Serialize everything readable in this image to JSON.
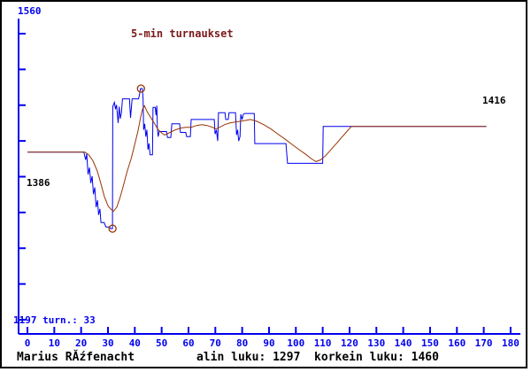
{
  "window": {
    "background": "#ffffff",
    "border_color": "#000000"
  },
  "header": {
    "title": "5-min turnaukset"
  },
  "labels": {
    "y_axis_top": "1560",
    "y_axis_bottom_info": "1197 turn.: 33",
    "series_start_value": "1386",
    "series_end_value": "1416"
  },
  "footer": {
    "player_name": "Marius RĂźfenacht",
    "stats": "alin luku: 1297  korkein luku: 1460"
  },
  "colors": {
    "axis_and_rating_blue": "#0000ee",
    "average_line_brown": "#993300",
    "title_maroon": "#7a1a1a",
    "text_black": "#000000"
  },
  "chart_data": {
    "type": "line",
    "title": "5-min turnaukset",
    "xlabel": "",
    "ylabel": "",
    "grid": false,
    "legend": "none",
    "x_axis": {
      "min": 0,
      "max": 180,
      "tick_step": 10,
      "ticks": [
        0,
        10,
        20,
        30,
        40,
        50,
        60,
        70,
        80,
        90,
        100,
        110,
        120,
        130,
        140,
        150,
        160,
        170,
        180
      ]
    },
    "y_axis": {
      "top_label_value": 1560,
      "bottom_label_value": 1197,
      "minor_tick_count": 9
    },
    "stats": {
      "lowest": 1297,
      "highest": 1460,
      "start": 1386,
      "current": 1416,
      "tournaments": 33
    },
    "series": [
      {
        "name": "rating",
        "color_key": "axis_and_rating_blue",
        "points": [
          [
            0,
            1386
          ],
          [
            21,
            1386
          ],
          [
            21.7,
            1377
          ],
          [
            22.1,
            1384
          ],
          [
            22.6,
            1360
          ],
          [
            23.1,
            1368
          ],
          [
            23.6,
            1350
          ],
          [
            24.1,
            1358
          ],
          [
            24.6,
            1337
          ],
          [
            25.1,
            1345
          ],
          [
            25.6,
            1322
          ],
          [
            26.1,
            1330
          ],
          [
            26.5,
            1313
          ],
          [
            27,
            1320
          ],
          [
            27.4,
            1304
          ],
          [
            28.6,
            1304
          ],
          [
            29.2,
            1299
          ],
          [
            30.6,
            1299
          ],
          [
            31,
            1297
          ],
          [
            31.7,
            1297
          ],
          [
            31.8,
            1439
          ],
          [
            32.4,
            1444
          ],
          [
            32.8,
            1436
          ],
          [
            33.2,
            1441
          ],
          [
            33.8,
            1420
          ],
          [
            34.2,
            1439
          ],
          [
            34.6,
            1425
          ],
          [
            35,
            1432
          ],
          [
            35.4,
            1448
          ],
          [
            38,
            1448
          ],
          [
            38.4,
            1426
          ],
          [
            39,
            1448
          ],
          [
            41.4,
            1448
          ],
          [
            41.8,
            1454
          ],
          [
            42.1,
            1460
          ],
          [
            42.8,
            1460
          ],
          [
            43.1,
            1448
          ],
          [
            43.3,
            1412
          ],
          [
            43.7,
            1419
          ],
          [
            44.1,
            1404
          ],
          [
            44.5,
            1412
          ],
          [
            44.9,
            1389
          ],
          [
            45.3,
            1396
          ],
          [
            45.7,
            1383
          ],
          [
            46.6,
            1383
          ],
          [
            46.8,
            1438
          ],
          [
            47.6,
            1438
          ],
          [
            47.9,
            1429
          ],
          [
            48.2,
            1440
          ],
          [
            48.4,
            1415
          ],
          [
            48.7,
            1404
          ],
          [
            49.1,
            1410
          ],
          [
            51.8,
            1410
          ],
          [
            52.2,
            1403
          ],
          [
            53.4,
            1403
          ],
          [
            53.8,
            1419
          ],
          [
            56.7,
            1419
          ],
          [
            57,
            1409
          ],
          [
            59,
            1409
          ],
          [
            59.3,
            1404
          ],
          [
            60.7,
            1404
          ],
          [
            61,
            1424
          ],
          [
            69.6,
            1424
          ],
          [
            69.9,
            1407
          ],
          [
            70.4,
            1412
          ],
          [
            70.9,
            1399
          ],
          [
            71.2,
            1432
          ],
          [
            73.6,
            1432
          ],
          [
            73.9,
            1424
          ],
          [
            74.8,
            1424
          ],
          [
            75.1,
            1432
          ],
          [
            77.5,
            1432
          ],
          [
            77.9,
            1406
          ],
          [
            78.3,
            1412
          ],
          [
            78.7,
            1399
          ],
          [
            79.2,
            1404
          ],
          [
            79.5,
            1430
          ],
          [
            80,
            1424
          ],
          [
            80.4,
            1430
          ],
          [
            81,
            1431
          ],
          [
            84.5,
            1431
          ],
          [
            84.7,
            1396
          ],
          [
            96.3,
            1396
          ],
          [
            96.9,
            1373
          ],
          [
            110,
            1373
          ],
          [
            110.2,
            1416
          ],
          [
            171,
            1416
          ]
        ]
      },
      {
        "name": "smoothed-average",
        "color_key": "average_line_brown",
        "points": [
          [
            0,
            1386
          ],
          [
            21.4,
            1386
          ],
          [
            22.8,
            1383
          ],
          [
            24.4,
            1376
          ],
          [
            26,
            1364
          ],
          [
            27.4,
            1349
          ],
          [
            28.7,
            1334
          ],
          [
            30.1,
            1323
          ],
          [
            31,
            1320
          ],
          [
            32,
            1317
          ],
          [
            33.3,
            1322
          ],
          [
            34.6,
            1334
          ],
          [
            35.9,
            1349
          ],
          [
            37.2,
            1364
          ],
          [
            38.6,
            1378
          ],
          [
            39.9,
            1394
          ],
          [
            41.2,
            1411
          ],
          [
            42.2,
            1427
          ],
          [
            42.9,
            1436
          ],
          [
            43.6,
            1440
          ],
          [
            44.6,
            1433
          ],
          [
            45.8,
            1427
          ],
          [
            47.2,
            1420
          ],
          [
            48.5,
            1413
          ],
          [
            50.1,
            1408
          ],
          [
            51.1,
            1406
          ],
          [
            53.1,
            1409
          ],
          [
            55.1,
            1412
          ],
          [
            57.1,
            1414
          ],
          [
            59,
            1415
          ],
          [
            61,
            1415
          ],
          [
            63,
            1417
          ],
          [
            65,
            1418
          ],
          [
            66.9,
            1417
          ],
          [
            68.9,
            1415
          ],
          [
            70.2,
            1413
          ],
          [
            71.6,
            1415
          ],
          [
            73.5,
            1418
          ],
          [
            75.5,
            1420
          ],
          [
            77.5,
            1421
          ],
          [
            79.4,
            1422
          ],
          [
            81.4,
            1423
          ],
          [
            83.1,
            1424
          ],
          [
            85.4,
            1422
          ],
          [
            88,
            1418
          ],
          [
            90.7,
            1413
          ],
          [
            93.3,
            1407
          ],
          [
            96,
            1401
          ],
          [
            98.6,
            1395
          ],
          [
            101.2,
            1389
          ],
          [
            103.9,
            1383
          ],
          [
            105.9,
            1378
          ],
          [
            107.5,
            1375
          ],
          [
            109.2,
            1377
          ],
          [
            111.1,
            1382
          ],
          [
            113.1,
            1389
          ],
          [
            115.1,
            1396
          ],
          [
            117,
            1403
          ],
          [
            119,
            1410
          ],
          [
            120.7,
            1416
          ],
          [
            171,
            1416
          ]
        ]
      }
    ],
    "markers": [
      {
        "label": "lowest-point",
        "x": 31.7,
        "value": 1297
      },
      {
        "label": "highest-point",
        "x": 42.3,
        "value": 1460
      }
    ]
  }
}
